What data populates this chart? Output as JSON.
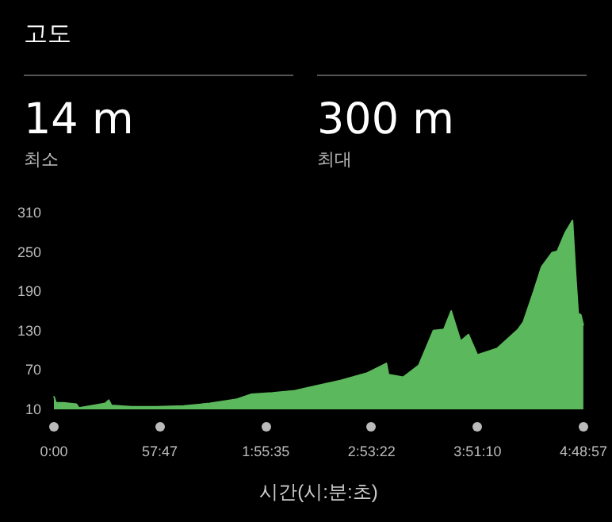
{
  "chart_data": {
    "type": "area",
    "title": "고도",
    "xlabel": "시간(시:분:초)",
    "annotations": [
      "14 m",
      "최소",
      "300 m",
      "최대"
    ],
    "color": "#5cb85c",
    "x": [
      0,
      1.14,
      5.16,
      12.24,
      13.68,
      27.96,
      29.94,
      31.38,
      42.24,
      56.46,
      70.74,
      85.02,
      99.24,
      107.82,
      119.22,
      130.62,
      142.02,
      156.3,
      170.58,
      181.44,
      182.58,
      190.56,
      199.08,
      207.06,
      212.82,
      216.78,
      221.94,
      226.2,
      231.06,
      241.86,
      253.32,
      256.14,
      261.84,
      266.1,
      271.86,
      274.68,
      278.94,
      282.96,
      284.7,
      286.08,
      287.52,
      288.9
    ],
    "values": [
      30,
      20,
      20,
      18,
      12,
      19,
      24,
      16,
      14,
      14,
      15,
      19,
      25,
      33,
      35,
      38,
      45,
      54,
      65,
      80,
      63,
      59,
      77,
      130,
      132,
      160,
      114,
      124,
      93,
      103,
      132,
      143,
      190,
      227,
      249,
      251,
      279,
      298,
      215,
      156,
      154,
      138
    ],
    "xlim": [
      0,
      288.95
    ],
    "xticks": [
      {
        "value": 0,
        "label": "0:00"
      },
      {
        "value": 57.783,
        "label": "57:47"
      },
      {
        "value": 115.583,
        "label": "1:55:35"
      },
      {
        "value": 173.367,
        "label": "2:53:22"
      },
      {
        "value": 231.167,
        "label": "3:51:10"
      },
      {
        "value": 288.95,
        "label": "4:48:57"
      }
    ],
    "ylim": [
      10,
      310
    ],
    "yticks": [
      10,
      70,
      130,
      190,
      250,
      310
    ],
    "grid": false
  }
}
